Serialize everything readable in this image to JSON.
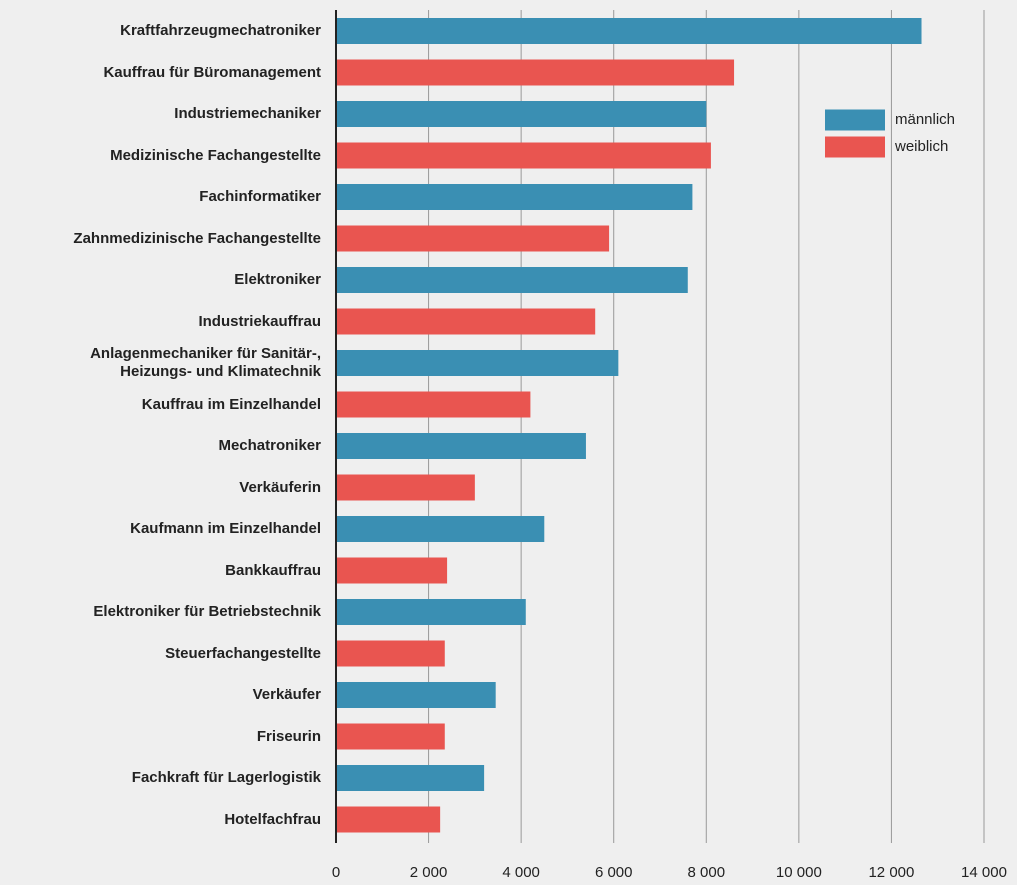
{
  "chart_data": {
    "type": "bar",
    "orientation": "horizontal",
    "categories": [
      "Kraftfahrzeugmechatroniker",
      "Kauffrau für Büromanagement",
      "Industriemechaniker",
      "Medizinische Fachangestellte",
      "Fachinformatiker",
      "Zahnmedizinische Fachangestellte",
      "Elektroniker",
      "Industriekauffrau",
      "Anlagenmechaniker für Sanitär-,\nHeizungs-  und Klimatechnik",
      "Kauffrau im Einzelhandel",
      "Mechatroniker",
      "Verkäuferin",
      "Kaufmann im Einzelhandel",
      "Bankkauffrau",
      "Elektroniker für Betriebstechnik",
      "Steuerfachangestellte",
      "Verkäufer",
      "Friseurin",
      "Fachkraft für Lagerlogistik",
      "Hotelfachfrau"
    ],
    "series": [
      {
        "name": "männlich",
        "color": "#3a8fb3",
        "values": [
          12650,
          null,
          8000,
          null,
          7700,
          null,
          7600,
          null,
          6100,
          null,
          5400,
          null,
          4500,
          null,
          4100,
          null,
          3450,
          null,
          3200,
          null
        ]
      },
      {
        "name": "weiblich",
        "color": "#e95550",
        "values": [
          null,
          8600,
          null,
          8100,
          null,
          5900,
          null,
          5600,
          null,
          4200,
          null,
          3000,
          null,
          2400,
          null,
          2350,
          null,
          2350,
          null,
          2250
        ]
      }
    ],
    "xlim": [
      0,
      14000
    ],
    "xticks": [
      0,
      {
        "value": 2000,
        "label": "2 000"
      },
      {
        "value": 4000,
        "label": "4 000"
      },
      {
        "value": 6000,
        "label": "6 000"
      },
      {
        "value": 8000,
        "label": "8 000"
      },
      {
        "value": 10000,
        "label": "10 000"
      },
      {
        "value": 12000,
        "label": "12 000"
      },
      {
        "value": 14000,
        "label": "14 000"
      }
    ],
    "grid": true,
    "legend": "upper right"
  }
}
